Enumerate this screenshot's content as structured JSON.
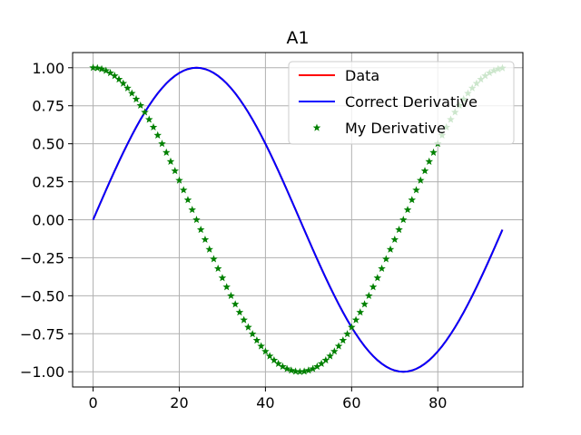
{
  "chart_data": {
    "type": "line",
    "title": "A1",
    "xlabel": "",
    "ylabel": "",
    "xlim": [
      -4.75,
      99.75
    ],
    "ylim": [
      -1.1,
      1.1
    ],
    "xticks": [
      0,
      20,
      40,
      60,
      80
    ],
    "yticks": [
      -1.0,
      -0.75,
      -0.5,
      -0.25,
      0.0,
      0.25,
      0.5,
      0.75,
      1.0
    ],
    "xtick_labels": [
      "0",
      "20",
      "40",
      "60",
      "80"
    ],
    "ytick_labels": [
      "−1.00",
      "−0.75",
      "−0.50",
      "−0.25",
      "0.00",
      "0.25",
      "0.50",
      "0.75",
      "1.00"
    ],
    "grid": true,
    "legend_position": "top-right",
    "x": [
      0,
      1,
      2,
      3,
      4,
      5,
      6,
      7,
      8,
      9,
      10,
      11,
      12,
      13,
      14,
      15,
      16,
      17,
      18,
      19,
      20,
      21,
      22,
      23,
      24,
      25,
      26,
      27,
      28,
      29,
      30,
      31,
      32,
      33,
      34,
      35,
      36,
      37,
      38,
      39,
      40,
      41,
      42,
      43,
      44,
      45,
      46,
      47,
      48,
      49,
      50,
      51,
      52,
      53,
      54,
      55,
      56,
      57,
      58,
      59,
      60,
      61,
      62,
      63,
      64,
      65,
      66,
      67,
      68,
      69,
      70,
      71,
      72,
      73,
      74,
      75,
      76,
      77,
      78,
      79,
      80,
      81,
      82,
      83,
      84,
      85,
      86,
      87,
      88,
      89,
      90,
      91,
      92,
      93,
      94,
      95
    ],
    "series": [
      {
        "name": "Data",
        "style": "line",
        "color": "#ff0000",
        "values": [
          0.0,
          0.0654,
          0.1305,
          0.1951,
          0.2588,
          0.3214,
          0.3827,
          0.4423,
          0.5,
          0.5556,
          0.6088,
          0.6593,
          0.7071,
          0.7518,
          0.7934,
          0.8315,
          0.866,
          0.8969,
          0.9239,
          0.9469,
          0.9659,
          0.9808,
          0.9914,
          0.9979,
          1.0,
          0.9979,
          0.9914,
          0.9808,
          0.9659,
          0.9469,
          0.9239,
          0.8969,
          0.866,
          0.8315,
          0.7934,
          0.7518,
          0.7071,
          0.6593,
          0.6088,
          0.5556,
          0.5,
          0.4423,
          0.3827,
          0.3214,
          0.2588,
          0.1951,
          0.1305,
          0.0654,
          0.0,
          -0.0654,
          -0.1305,
          -0.1951,
          -0.2588,
          -0.3214,
          -0.3827,
          -0.4423,
          -0.5,
          -0.5556,
          -0.6088,
          -0.6593,
          -0.7071,
          -0.7518,
          -0.7934,
          -0.8315,
          -0.866,
          -0.8969,
          -0.9239,
          -0.9469,
          -0.9659,
          -0.9808,
          -0.9914,
          -0.9979,
          -1.0,
          -0.9979,
          -0.9914,
          -0.9808,
          -0.9659,
          -0.9469,
          -0.9239,
          -0.8969,
          -0.866,
          -0.8315,
          -0.7934,
          -0.7518,
          -0.7071,
          -0.6593,
          -0.6088,
          -0.5556,
          -0.5,
          -0.4423,
          -0.3827,
          -0.3214,
          -0.2588,
          -0.1951,
          -0.1305,
          -0.0654
        ]
      },
      {
        "name": "Correct Derivative",
        "style": "line",
        "color": "#0000ff",
        "values": [
          0.0,
          0.0654,
          0.1305,
          0.1951,
          0.2588,
          0.3214,
          0.3827,
          0.4423,
          0.5,
          0.5556,
          0.6088,
          0.6593,
          0.7071,
          0.7518,
          0.7934,
          0.8315,
          0.866,
          0.8969,
          0.9239,
          0.9469,
          0.9659,
          0.9808,
          0.9914,
          0.9979,
          1.0,
          0.9979,
          0.9914,
          0.9808,
          0.9659,
          0.9469,
          0.9239,
          0.8969,
          0.866,
          0.8315,
          0.7934,
          0.7518,
          0.7071,
          0.6593,
          0.6088,
          0.5556,
          0.5,
          0.4423,
          0.3827,
          0.3214,
          0.2588,
          0.1951,
          0.1305,
          0.0654,
          0.0,
          -0.0654,
          -0.1305,
          -0.1951,
          -0.2588,
          -0.3214,
          -0.3827,
          -0.4423,
          -0.5,
          -0.5556,
          -0.6088,
          -0.6593,
          -0.7071,
          -0.7518,
          -0.7934,
          -0.8315,
          -0.866,
          -0.8969,
          -0.9239,
          -0.9469,
          -0.9659,
          -0.9808,
          -0.9914,
          -0.9979,
          -1.0,
          -0.9979,
          -0.9914,
          -0.9808,
          -0.9659,
          -0.9469,
          -0.9239,
          -0.8969,
          -0.866,
          -0.8315,
          -0.7934,
          -0.7518,
          -0.7071,
          -0.6593,
          -0.6088,
          -0.5556,
          -0.5,
          -0.4423,
          -0.3827,
          -0.3214,
          -0.2588,
          -0.1951,
          -0.1305,
          -0.0654
        ]
      },
      {
        "name": "My Derivative",
        "style": "markers",
        "marker": "star",
        "color": "#008000",
        "values": [
          1.0,
          0.9979,
          0.9914,
          0.9808,
          0.9659,
          0.9469,
          0.9239,
          0.8969,
          0.866,
          0.8315,
          0.7934,
          0.7518,
          0.7071,
          0.6593,
          0.6088,
          0.5556,
          0.5,
          0.4423,
          0.3827,
          0.3214,
          0.2588,
          0.1951,
          0.1305,
          0.0654,
          0.0,
          -0.0654,
          -0.1305,
          -0.1951,
          -0.2588,
          -0.3214,
          -0.3827,
          -0.4423,
          -0.5,
          -0.5556,
          -0.6088,
          -0.6593,
          -0.7071,
          -0.7518,
          -0.7934,
          -0.8315,
          -0.866,
          -0.8969,
          -0.9239,
          -0.9469,
          -0.9659,
          -0.9808,
          -0.9914,
          -0.9979,
          -1.0,
          -0.9979,
          -0.9914,
          -0.9808,
          -0.9659,
          -0.9469,
          -0.9239,
          -0.8969,
          -0.866,
          -0.8315,
          -0.7934,
          -0.7518,
          -0.7071,
          -0.6593,
          -0.6088,
          -0.5556,
          -0.5,
          -0.4423,
          -0.3827,
          -0.3214,
          -0.2588,
          -0.1951,
          -0.1305,
          -0.0654,
          0.0,
          0.0654,
          0.1305,
          0.1951,
          0.2588,
          0.3214,
          0.3827,
          0.4423,
          0.5,
          0.5556,
          0.6088,
          0.6593,
          0.7071,
          0.7518,
          0.7934,
          0.8315,
          0.866,
          0.8969,
          0.9239,
          0.9469,
          0.9659,
          0.9808,
          0.9914,
          0.9979
        ]
      }
    ]
  }
}
